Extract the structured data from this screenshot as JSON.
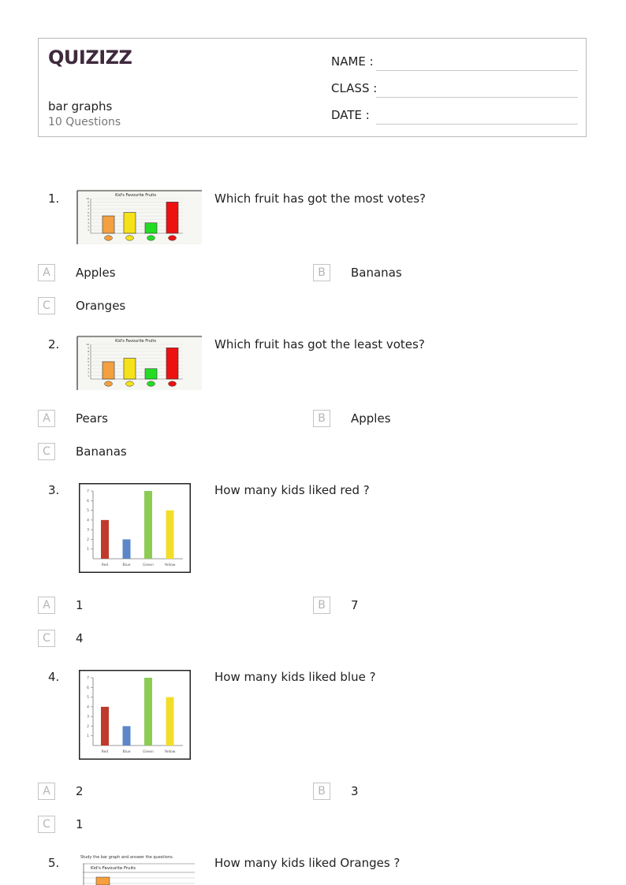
{
  "header": {
    "logo": "QUIZIZZ",
    "title": "bar graphs",
    "count": "10 Questions",
    "fields": [
      "NAME :",
      "CLASS :",
      "DATE  :"
    ]
  },
  "questions": [
    {
      "number": "1.",
      "text": "Which fruit has got the most votes?",
      "image_title": "Kid's Favourite Fruits",
      "options": [
        {
          "letter": "A",
          "text": "Apples"
        },
        {
          "letter": "B",
          "text": "Bananas"
        },
        {
          "letter": "C",
          "text": "Oranges"
        }
      ]
    },
    {
      "number": "2.",
      "text": "Which fruit has got the least votes?",
      "image_title": "Kid's Favourite Fruits",
      "options": [
        {
          "letter": "A",
          "text": "Pears"
        },
        {
          "letter": "B",
          "text": "Apples"
        },
        {
          "letter": "C",
          "text": "Bananas"
        }
      ]
    },
    {
      "number": "3.",
      "text": "How many kids liked red ?",
      "options": [
        {
          "letter": "A",
          "text": "1"
        },
        {
          "letter": "B",
          "text": "7"
        },
        {
          "letter": "C",
          "text": "4"
        }
      ]
    },
    {
      "number": "4.",
      "text": "How many kids liked blue ?",
      "options": [
        {
          "letter": "A",
          "text": "2"
        },
        {
          "letter": "B",
          "text": "3"
        },
        {
          "letter": "C",
          "text": "1"
        }
      ]
    },
    {
      "number": "5.",
      "text": "How many kids liked Oranges ?",
      "image_caption": "Study the bar graph and answer the questions.",
      "image_title": "Kid's Favourite Fruits"
    }
  ],
  "chart_data": [
    {
      "type": "bar",
      "title": "Kid's Favourite Fruits",
      "categories": [
        "Oranges",
        "Bananas",
        "Pears",
        "Apples"
      ],
      "values": [
        5,
        6,
        3,
        9
      ],
      "colors": [
        "#f4a040",
        "#f5e21a",
        "#22dd22",
        "#ee1111"
      ],
      "ylim": [
        0,
        10
      ],
      "yticks": [
        "1",
        "2",
        "3",
        "4",
        "5",
        "6",
        "7",
        "8",
        "9",
        "10"
      ]
    },
    {
      "type": "bar",
      "categories": [
        "Red",
        "Blue",
        "Green",
        "Yellow"
      ],
      "values": [
        4,
        2,
        7,
        5
      ],
      "colors": [
        "#c0392b",
        "#5b87c9",
        "#8ccc55",
        "#f2de2a"
      ],
      "ylim": [
        0,
        7
      ],
      "yticks": [
        "1",
        "2",
        "3",
        "4",
        "5",
        "6",
        "7"
      ]
    }
  ]
}
